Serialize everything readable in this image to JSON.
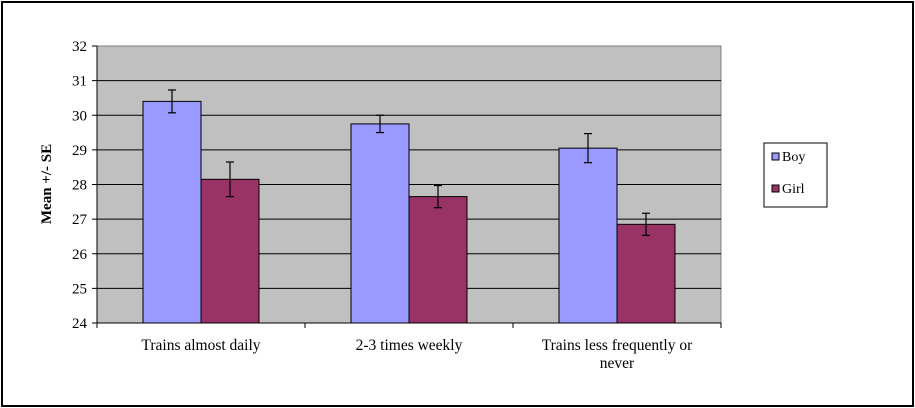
{
  "chart_data": {
    "type": "bar",
    "title": "",
    "xlabel": "",
    "ylabel": "Mean +/- SE",
    "categories": [
      [
        "Trains almost daily"
      ],
      [
        "2-3 times weekly"
      ],
      [
        "Trains less frequently or",
        "never"
      ]
    ],
    "series": [
      {
        "name": "Boy",
        "color": "#9999ff",
        "values": [
          30.4,
          29.75,
          29.05
        ],
        "se": [
          0.33,
          0.25,
          0.42
        ]
      },
      {
        "name": "Girl",
        "color": "#993366",
        "values": [
          28.15,
          27.65,
          26.85
        ],
        "se": [
          0.5,
          0.32,
          0.32
        ]
      }
    ],
    "ylim": [
      24,
      32
    ],
    "yticks": [
      "24",
      "25",
      "26",
      "27",
      "28",
      "29",
      "30",
      "31",
      "32"
    ],
    "grid": true,
    "plot_background": "#c0c0c0",
    "legend_position": "right"
  }
}
